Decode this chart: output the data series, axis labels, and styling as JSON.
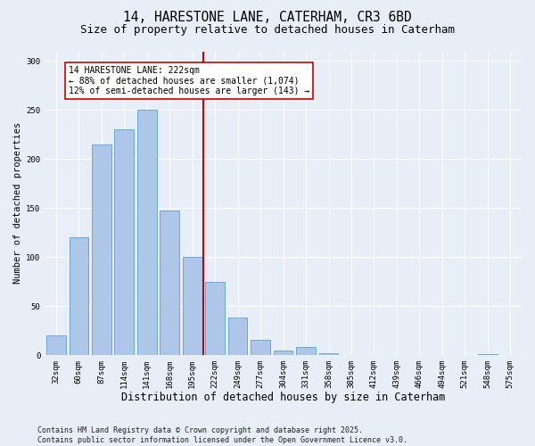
{
  "title": "14, HARESTONE LANE, CATERHAM, CR3 6BD",
  "subtitle": "Size of property relative to detached houses in Caterham",
  "xlabel": "Distribution of detached houses by size in Caterham",
  "ylabel": "Number of detached properties",
  "categories": [
    "32sqm",
    "60sqm",
    "87sqm",
    "114sqm",
    "141sqm",
    "168sqm",
    "195sqm",
    "222sqm",
    "249sqm",
    "277sqm",
    "304sqm",
    "331sqm",
    "358sqm",
    "385sqm",
    "412sqm",
    "439sqm",
    "466sqm",
    "494sqm",
    "521sqm",
    "548sqm",
    "575sqm"
  ],
  "values": [
    20,
    120,
    215,
    230,
    250,
    148,
    100,
    75,
    38,
    16,
    5,
    8,
    2,
    0,
    0,
    0,
    0,
    0,
    0,
    1,
    0
  ],
  "bar_color": "#aec6e8",
  "bar_edge_color": "#5a9fd4",
  "vline_color": "#cc0000",
  "annotation_text": "14 HARESTONE LANE: 222sqm\n← 88% of detached houses are smaller (1,074)\n12% of semi-detached houses are larger (143) →",
  "annotation_box_color": "#ffffff",
  "annotation_box_edge_color": "#cc0000",
  "ylim": [
    0,
    310
  ],
  "yticks": [
    0,
    50,
    100,
    150,
    200,
    250,
    300
  ],
  "background_color": "#e8eef7",
  "plot_bg_color": "#e8eef7",
  "footer": "Contains HM Land Registry data © Crown copyright and database right 2025.\nContains public sector information licensed under the Open Government Licence v3.0.",
  "title_fontsize": 10.5,
  "subtitle_fontsize": 9,
  "xlabel_fontsize": 8.5,
  "ylabel_fontsize": 7.5,
  "tick_fontsize": 6.5,
  "annotation_fontsize": 7,
  "footer_fontsize": 6
}
